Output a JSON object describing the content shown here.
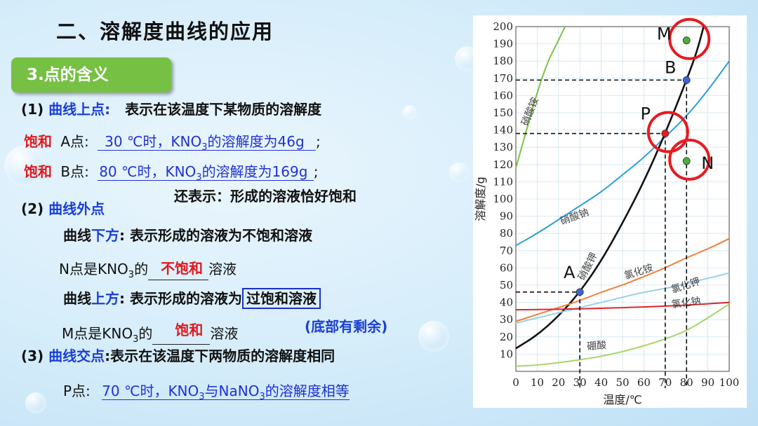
{
  "heading": "二、溶解度曲线的应用",
  "section_badge": "3.点的含义",
  "s1": {
    "label": "(1)",
    "keyword": "曲线上点:",
    "desc": "表示在该温度下某物质的溶解度",
    "a_prefix": "饱和",
    "a_label": "A点:",
    "a_fill_temp": "30 ℃时，KNO",
    "a_fill_sub": "3",
    "a_fill_rest": "的溶解度为46g",
    "a_end": ";",
    "b_prefix": "饱和",
    "b_label": "B点:",
    "b_fill_temp": "80 ℃时，KNO",
    "b_fill_sub": "3",
    "b_fill_rest": "的溶解度为169g",
    "b_end": ";",
    "also": "还表示：形成的溶液恰好饱和"
  },
  "s2": {
    "label": "(2)",
    "keyword": "曲线外点",
    "below_a": "曲线",
    "below_b": "下方",
    "below_c": ":",
    "below_desc": "表示形成的溶液为不饱和溶液",
    "n_pre": "N点是KNO",
    "n_sub": "3",
    "n_mid": "的",
    "n_fill": "不饱和",
    "n_post": "溶液",
    "above_a": "曲线",
    "above_b": "上方",
    "above_c": ":",
    "above_desc": "表示形成的溶液为",
    "above_box": "过饱和溶液",
    "above_note": "(底部有剩余)",
    "m_pre": "M点是KNO",
    "m_sub": "3",
    "m_mid": "的",
    "m_fill": "饱和",
    "m_post": "溶液"
  },
  "s3": {
    "label": "(3)",
    "keyword": "曲线交点",
    "desc": ":表示在该温度下两物质的溶解度相同",
    "p_label": "P点:",
    "p_fill_1": "70 ℃时，KNO",
    "p_fill_sub1": "3",
    "p_fill_2": "与NaNO",
    "p_fill_sub2": "3",
    "p_fill_3": "的溶解度",
    "p_fill_4": "相等"
  },
  "colors": {
    "green_badge": "#76c043",
    "blue_text": "#1a3fd6",
    "red_text": "#e0191c",
    "circle_red": "#e8191f",
    "point_green": "#4caf3a",
    "point_blue": "#3a64d8",
    "point_red": "#e8191f"
  },
  "chart_data": {
    "type": "line",
    "xlabel": "温度/℃",
    "ylabel": "溶解度/g",
    "xlim": [
      0,
      100
    ],
    "ylim": [
      0,
      200
    ],
    "xticks": [
      0,
      10,
      20,
      30,
      40,
      50,
      60,
      70,
      80,
      90,
      100
    ],
    "yticks": [
      10,
      20,
      30,
      40,
      50,
      60,
      70,
      80,
      90,
      100,
      110,
      120,
      130,
      140,
      150,
      160,
      170,
      180,
      190,
      200
    ],
    "grid": true,
    "series": [
      {
        "name": "硝酸铵",
        "color": "#7cc242",
        "x": [
          0,
          5,
          10,
          15,
          20,
          23
        ],
        "y": [
          118,
          140,
          162,
          180,
          192,
          200
        ]
      },
      {
        "name": "硝酸钠",
        "color": "#2a9fd8",
        "x": [
          0,
          10,
          20,
          30,
          40,
          50,
          60,
          70,
          80,
          90,
          100
        ],
        "y": [
          73,
          80,
          88,
          96,
          104,
          114,
          124,
          136,
          148,
          163,
          180
        ]
      },
      {
        "name": "硝酸钾",
        "color": "#111111",
        "x": [
          0,
          10,
          20,
          30,
          40,
          50,
          60,
          70,
          80,
          85,
          88
        ],
        "y": [
          13.3,
          21,
          32,
          46,
          64,
          86,
          110,
          138,
          169,
          186,
          200
        ]
      },
      {
        "name": "氯化铵",
        "color": "#f07f3a",
        "x": [
          0,
          10,
          20,
          30,
          40,
          50,
          60,
          70,
          80,
          90,
          100
        ],
        "y": [
          29,
          33,
          37,
          41,
          46,
          50,
          55,
          60,
          66,
          71,
          77
        ]
      },
      {
        "name": "氯化钾",
        "color": "#9ad0ea",
        "x": [
          0,
          10,
          20,
          30,
          40,
          50,
          60,
          70,
          80,
          90,
          100
        ],
        "y": [
          28,
          31,
          34,
          37,
          40,
          43,
          46,
          48,
          51,
          54,
          57
        ]
      },
      {
        "name": "氯化钠",
        "color": "#e0242a",
        "x": [
          0,
          20,
          40,
          60,
          80,
          100
        ],
        "y": [
          35.7,
          36,
          36.6,
          37.3,
          38.4,
          40
        ]
      },
      {
        "name": "硼酸",
        "color": "#a6d56a",
        "x": [
          0,
          10,
          20,
          30,
          40,
          50,
          60,
          70,
          80,
          90,
          100
        ],
        "y": [
          3,
          3.6,
          5,
          6.7,
          8.7,
          11.4,
          14.8,
          18.7,
          23.5,
          31,
          39
        ]
      }
    ],
    "points": [
      {
        "label": "A",
        "x": 30,
        "y": 46,
        "color": "#3a64d8"
      },
      {
        "label": "B",
        "x": 80,
        "y": 169,
        "color": "#3a64d8"
      },
      {
        "label": "P",
        "x": 70,
        "y": 138,
        "color": "#e8191f"
      },
      {
        "label": "M",
        "x": 80,
        "y": 192,
        "color": "#4caf3a"
      },
      {
        "label": "N",
        "x": 80,
        "y": 122,
        "color": "#4caf3a"
      }
    ]
  }
}
